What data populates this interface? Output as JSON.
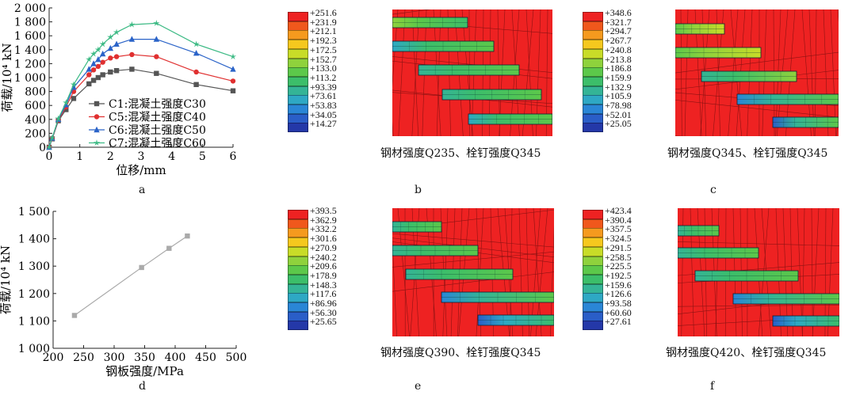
{
  "panel_labels": [
    "a",
    "b",
    "c",
    "d",
    "e",
    "f"
  ],
  "chart_data": [
    {
      "type": "line",
      "panel": "a",
      "xlabel": "位移/mm",
      "ylabel": "荷载/10⁴ kN",
      "xlim": [
        0,
        6
      ],
      "ylim": [
        0,
        2000
      ],
      "xticks": [
        "0",
        "1",
        "2",
        "3",
        "4",
        "5",
        "6"
      ],
      "yticks": [
        "0",
        "200",
        "400",
        "600",
        "800",
        "1 000",
        "1 200",
        "1 400",
        "1 600",
        "1 800",
        "2 000"
      ],
      "legend_position": "bottom-center",
      "grid": false,
      "series": [
        {
          "name": "C1:混凝土强度C30",
          "color": "#555555",
          "marker": "square",
          "x": [
            0,
            0.1,
            0.3,
            0.55,
            0.8,
            1.3,
            1.45,
            1.6,
            1.75,
            2.0,
            2.2,
            2.7,
            3.5,
            4.8,
            6.0
          ],
          "y": [
            0,
            120,
            380,
            540,
            700,
            910,
            960,
            1000,
            1040,
            1080,
            1100,
            1120,
            1060,
            900,
            810
          ]
        },
        {
          "name": "C5:混凝土强度C40",
          "color": "#e03030",
          "marker": "circle",
          "x": [
            0,
            0.1,
            0.3,
            0.55,
            0.8,
            1.3,
            1.45,
            1.6,
            1.75,
            2.0,
            2.2,
            2.7,
            3.5,
            4.8,
            6.0
          ],
          "y": [
            0,
            125,
            390,
            580,
            800,
            1040,
            1110,
            1160,
            1220,
            1280,
            1300,
            1330,
            1300,
            1080,
            950
          ]
        },
        {
          "name": "C6:混凝土强度C50",
          "color": "#2a63c8",
          "marker": "triangle",
          "x": [
            0,
            0.1,
            0.3,
            0.55,
            0.8,
            1.3,
            1.45,
            1.6,
            1.75,
            2.0,
            2.2,
            2.7,
            3.5,
            4.8,
            6.0
          ],
          "y": [
            0,
            130,
            400,
            610,
            860,
            1120,
            1200,
            1260,
            1340,
            1420,
            1480,
            1550,
            1550,
            1350,
            1120
          ]
        },
        {
          "name": "C7:混凝土强度C60",
          "color": "#3cba84",
          "marker": "star",
          "x": [
            0,
            0.1,
            0.3,
            0.55,
            0.8,
            1.3,
            1.45,
            1.6,
            1.75,
            2.0,
            2.2,
            2.7,
            3.5,
            4.8,
            6.0
          ],
          "y": [
            0,
            135,
            410,
            640,
            900,
            1260,
            1340,
            1400,
            1480,
            1580,
            1650,
            1760,
            1780,
            1480,
            1300
          ]
        }
      ]
    },
    {
      "type": "line",
      "panel": "d",
      "xlabel": "钢板强度/MPa",
      "ylabel": "荷载/10⁴ kN",
      "xlim": [
        200,
        500
      ],
      "ylim": [
        1000,
        1500
      ],
      "xticks": [
        "200",
        "250",
        "300",
        "350",
        "400",
        "450",
        "500"
      ],
      "yticks": [
        "1 000",
        "1 100",
        "1 200",
        "1 300",
        "1 400",
        "1 500"
      ],
      "grid": false,
      "series": [
        {
          "color": "#aaaaaa",
          "marker": "square",
          "x": [
            235,
            345,
            390,
            420
          ],
          "y": [
            1120,
            1295,
            1365,
            1410
          ]
        }
      ]
    }
  ],
  "contour_panels": [
    {
      "panel": "b",
      "caption": "钢材强度Q235、栓钉强度Q345",
      "legend": [
        "+251.6",
        "+231.9",
        "+212.1",
        "+192.3",
        "+172.5",
        "+152.7",
        "+133.0",
        "+113.2",
        "+93.39",
        "+73.61",
        "+53.83",
        "+34.05",
        "+14.27"
      ]
    },
    {
      "panel": "c",
      "caption": "钢材强度Q345、栓钉强度Q345",
      "legend": [
        "+348.6",
        "+321.7",
        "+294.7",
        "+267.7",
        "+240.8",
        "+213.8",
        "+186.8",
        "+159.9",
        "+132.9",
        "+105.9",
        "+78.98",
        "+52.01",
        "+25.05"
      ]
    },
    {
      "panel": "e",
      "caption": "钢材强度Q390、栓钉强度Q345",
      "legend": [
        "+393.5",
        "+362.9",
        "+332.2",
        "+301.6",
        "+270.9",
        "+240.2",
        "+209.6",
        "+178.9",
        "+148.3",
        "+117.6",
        "+86.96",
        "+56.30",
        "+25.65"
      ]
    },
    {
      "panel": "f",
      "caption": "钢材强度Q420、栓钉强度Q345",
      "legend": [
        "+423.4",
        "+390.4",
        "+357.5",
        "+324.5",
        "+291.5",
        "+258.5",
        "+225.5",
        "+192.5",
        "+159.6",
        "+126.6",
        "+93.58",
        "+60.60",
        "+27.61"
      ]
    }
  ],
  "colors": {
    "scale": [
      "#ee2222",
      "#f0581c",
      "#f59a1e",
      "#f5c81e",
      "#c8dc28",
      "#8fd23c",
      "#5cc84a",
      "#3cbe6a",
      "#34b496",
      "#2ea8c4",
      "#2a86d6",
      "#2a5ec8",
      "#2438a8"
    ],
    "steel_bg": "#ee2222"
  }
}
